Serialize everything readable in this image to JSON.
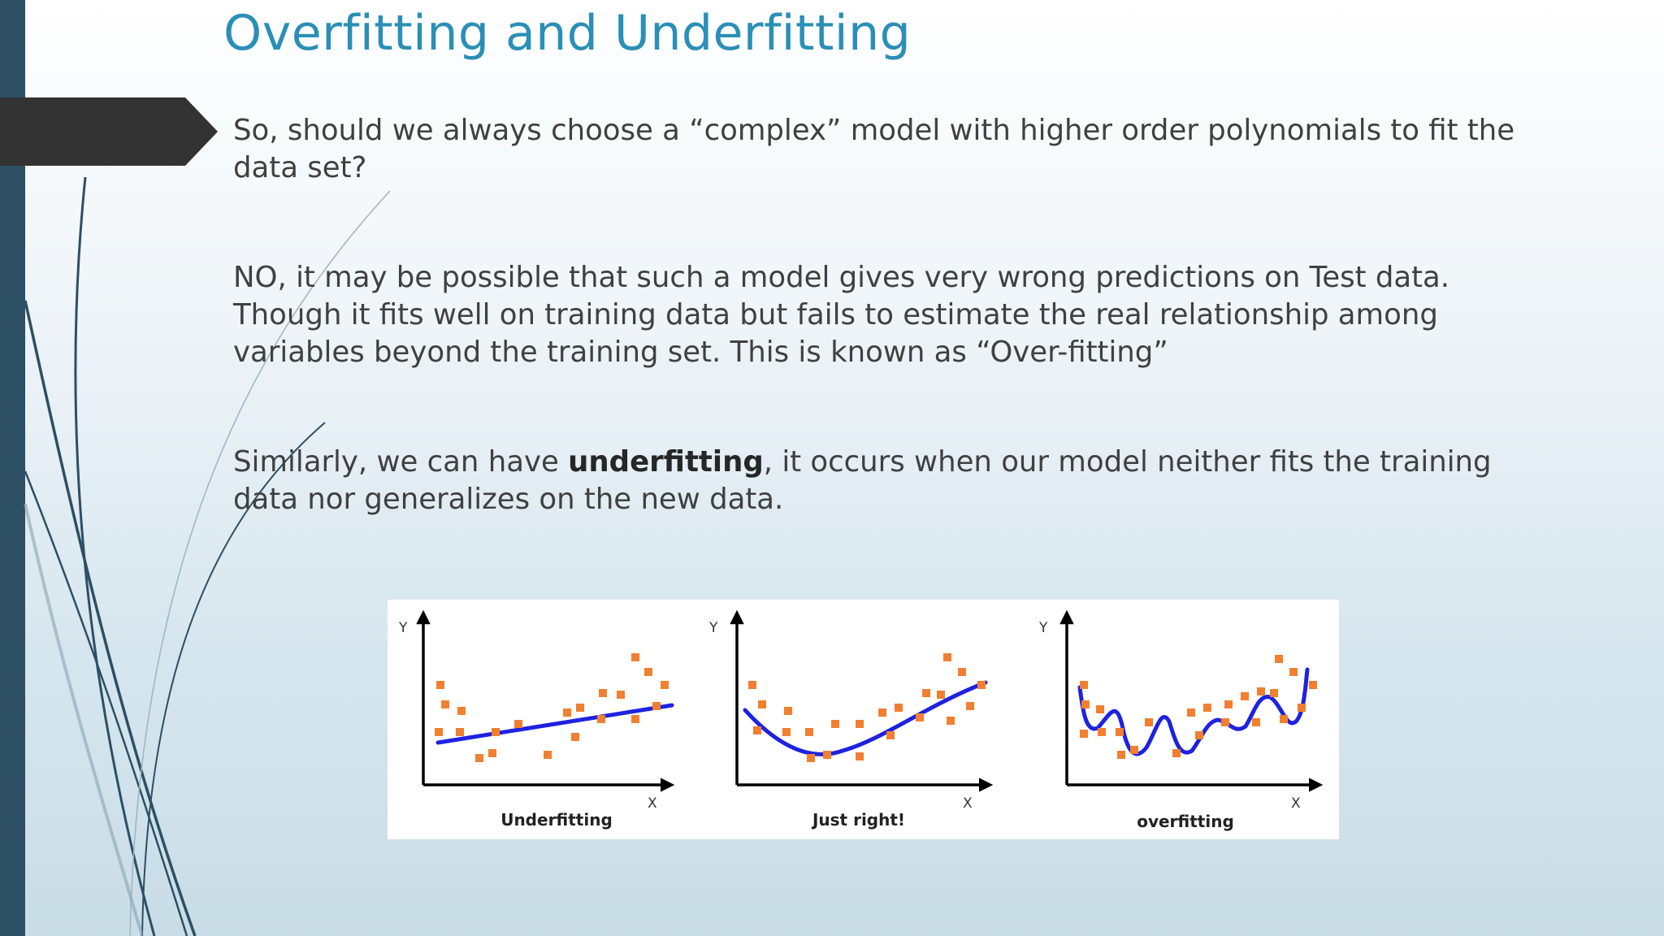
{
  "slide": {
    "title": "Overfitting and Underfitting",
    "paragraph_1": "So, should we always choose a “complex” model with higher order polynomials to fit the data set?",
    "paragraph_2": "NO, it may be possible that such a model gives very wrong predictions on Test data. Though it fits well on training data but fails to estimate the real relationship among variables beyond the training set. This is known as “Over-fitting”",
    "paragraph_3_before": "Similarly, we can have ",
    "paragraph_3_bold": "underfitting",
    "paragraph_3_after": ", it occurs when our model neither fits the training data nor generalizes on the new data."
  },
  "figure": {
    "panels": [
      {
        "caption": "Underfitting",
        "y_label": "Y",
        "x_label": "X"
      },
      {
        "caption": "Just right!",
        "y_label": "Y",
        "x_label": "X"
      },
      {
        "caption": "overfitting",
        "y_label": "Y",
        "x_label": "X"
      }
    ]
  },
  "colors": {
    "title": "#2a8fb6",
    "body_text": "#404040",
    "left_bar": "#2d4f64",
    "arrow_tab": "#333333",
    "fit_line": "#1e22e0",
    "data_points": "#f08030"
  }
}
